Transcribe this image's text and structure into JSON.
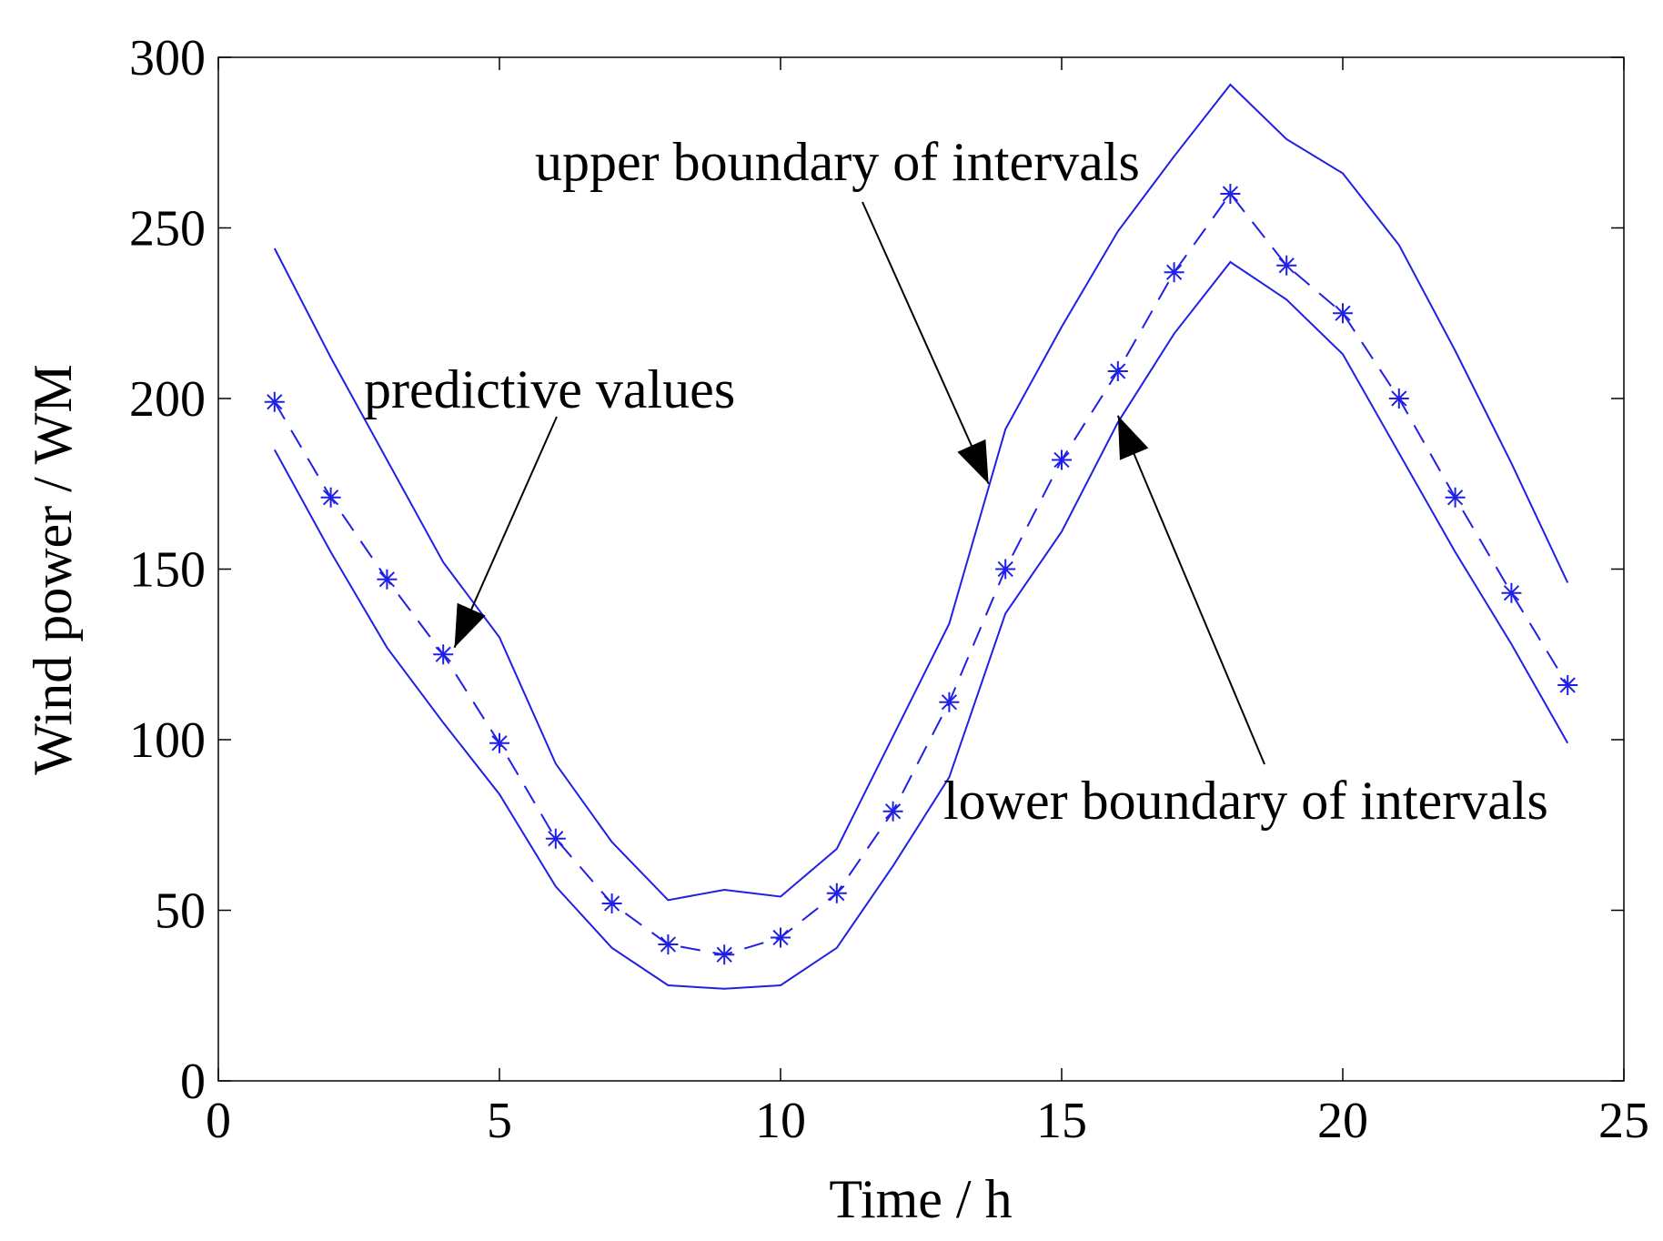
{
  "chart_data": {
    "type": "line",
    "title": "",
    "xlabel": "Time / h",
    "ylabel": "Wind power / WM",
    "xlim": [
      0,
      25
    ],
    "ylim": [
      0,
      300
    ],
    "xticks": [
      0,
      5,
      10,
      15,
      20,
      25
    ],
    "yticks": [
      0,
      50,
      100,
      150,
      200,
      250,
      300
    ],
    "xtick_labels": [
      "0",
      "5",
      "10",
      "15",
      "20",
      "25"
    ],
    "ytick_labels": [
      "0",
      "50",
      "100",
      "150",
      "200",
      "250",
      "300"
    ],
    "grid": false,
    "x": [
      1,
      2,
      3,
      4,
      5,
      6,
      7,
      8,
      9,
      10,
      11,
      12,
      13,
      14,
      15,
      16,
      17,
      18,
      19,
      20,
      21,
      22,
      23,
      24
    ],
    "series": [
      {
        "name": "upper boundary of intervals",
        "style": "solid",
        "color": "#1f1fe6",
        "values": [
          244,
          212,
          182,
          152,
          130,
          93,
          70,
          53,
          56,
          54,
          68,
          101,
          134,
          191,
          221,
          249,
          271,
          292,
          276,
          266,
          245,
          214,
          181,
          146
        ]
      },
      {
        "name": "predictive values",
        "style": "dashed-star",
        "color": "#1f1fe6",
        "values": [
          199,
          171,
          147,
          125,
          99,
          71,
          52,
          40,
          37,
          42,
          55,
          79,
          111,
          150,
          182,
          208,
          237,
          260,
          239,
          225,
          200,
          171,
          143,
          116
        ]
      },
      {
        "name": "lower boundary of intervals",
        "style": "solid",
        "color": "#1f1fe6",
        "values": [
          185,
          155,
          127,
          105,
          84,
          57,
          39,
          28,
          27,
          28,
          39,
          63,
          89,
          137,
          161,
          193,
          219,
          240,
          229,
          213,
          184,
          155,
          128,
          99
        ]
      }
    ],
    "annotations": [
      {
        "text": "upper boundary of intervals",
        "target": [
          13.7,
          175
        ]
      },
      {
        "text": "predictive values",
        "target": [
          4.2,
          127
        ]
      },
      {
        "text": "lower boundary of intervals",
        "target": [
          16.0,
          195
        ]
      }
    ]
  }
}
